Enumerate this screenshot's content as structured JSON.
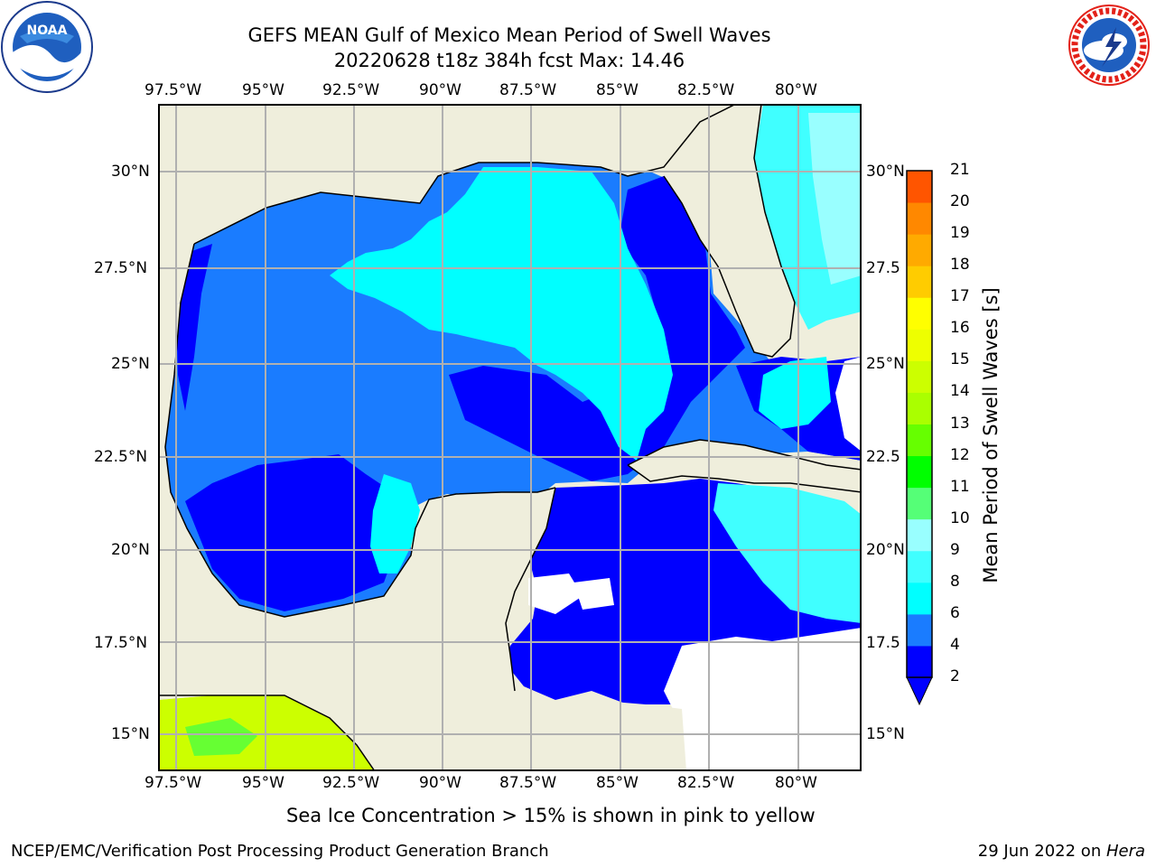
{
  "title": {
    "line1": "GEFS MEAN Gulf of Mexico Mean Period of Swell Waves",
    "line2": "20220628 t18z 384h fcst   Max: 14.46"
  },
  "logos": {
    "left": {
      "name": "noaa-logo",
      "text": "NOAA",
      "ring_text": "NATIONAL OCEANIC AND ATMOSPHERIC ADMINISTRATION · U.S. DEPARTMENT OF COMMERCE"
    },
    "right": {
      "name": "nws-logo",
      "ring_text": "NATIONAL WEATHER SERVICE"
    }
  },
  "map": {
    "lon_ticks_top": [
      "97.5°W",
      "95°W",
      "92.5°W",
      "90°W",
      "87.5°W",
      "85°W",
      "82.5°W",
      "80°W"
    ],
    "lon_ticks_bottom": [
      "97.5°W",
      "95°W",
      "92.5°W",
      "90°W",
      "87.5°W",
      "85°W",
      "82.5°W",
      "80°W"
    ],
    "lat_ticks_left": [
      "30°N",
      "27.5°N",
      "25°N",
      "22.5°N",
      "20°N",
      "17.5°N",
      "15°N"
    ],
    "lat_ticks_right": [
      "30°N",
      "27.5",
      "25°N",
      "22.5",
      "20°N",
      "17.5",
      "15°N"
    ],
    "colors": {
      "land": "#efeedc",
      "ocean_dark_blue": "#0000ff",
      "ocean_blue": "#1a7cff",
      "ocean_cyan": "#00ffff",
      "ocean_light_cyan": "#40ffff",
      "ocean_pale_cyan": "#99ffff",
      "pacific_yellow_green": "#ccff00",
      "pacific_green": "#66ff33",
      "grid": "#b0b0b0"
    }
  },
  "colorbar": {
    "label": "Mean Period of Swell Waves [s]",
    "ticks": [
      "2",
      "4",
      "6",
      "8",
      "9",
      "10",
      "11",
      "12",
      "13",
      "14",
      "15",
      "16",
      "17",
      "18",
      "19",
      "20",
      "21"
    ],
    "colors": [
      "#0000ff",
      "#1a7cff",
      "#00ffff",
      "#40ffff",
      "#99ffff",
      "#55ff77",
      "#00ff00",
      "#66ff00",
      "#aaff00",
      "#ccff00",
      "#eeff00",
      "#ffff00",
      "#ffcc00",
      "#ffaa00",
      "#ff8800",
      "#ff5500",
      "#ff2200",
      "#ff0000"
    ]
  },
  "note": "Sea Ice Concentration > 15% is shown in pink to yellow",
  "footer": {
    "left": "NCEP/EMC/Verification Post Processing Product Generation Branch",
    "right_date": "29 Jun 2022 on ",
    "right_host": "Hera"
  }
}
